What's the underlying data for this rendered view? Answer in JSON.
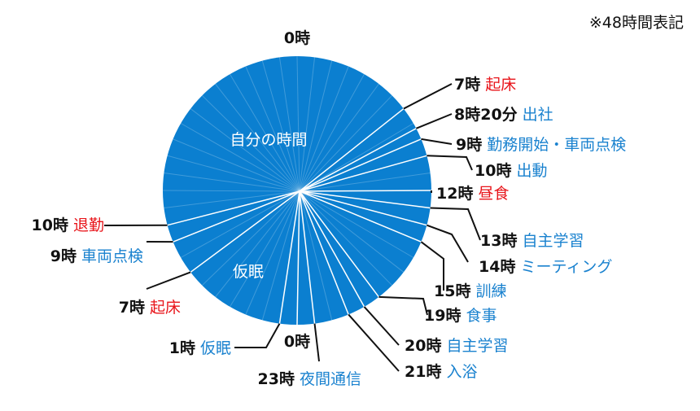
{
  "note": "※48時間表記",
  "top_label": "0時",
  "inner_labels": {
    "own_time": "自分の時間",
    "nap": "仮眠"
  },
  "colors": {
    "disc": "#0b7fd0",
    "blue_text": "#1a82cf",
    "red_text": "#e8141a",
    "line": "#111111"
  },
  "events": [
    {
      "hour": 7,
      "time": "7時",
      "event": "起床",
      "color": "red"
    },
    {
      "hour": 8.333,
      "time": "8時20分",
      "event": "出社",
      "color": "blue"
    },
    {
      "hour": 9,
      "time": "9時",
      "event": "勤務開始・車両点検",
      "color": "blue"
    },
    {
      "hour": 10,
      "time": "10時",
      "event": "出動",
      "color": "blue"
    },
    {
      "hour": 12,
      "time": "12時",
      "event": "昼食",
      "color": "red"
    },
    {
      "hour": 13,
      "time": "13時",
      "event": "自主学習",
      "color": "blue"
    },
    {
      "hour": 14,
      "time": "14時",
      "event": "ミーティング",
      "color": "blue"
    },
    {
      "hour": 15,
      "time": "15時",
      "event": "訓練",
      "color": "blue"
    },
    {
      "hour": 19,
      "time": "19時",
      "event": "食事",
      "color": "blue"
    },
    {
      "hour": 20,
      "time": "20時",
      "event": "自主学習",
      "color": "blue"
    },
    {
      "hour": 21,
      "time": "21時",
      "event": "入浴",
      "color": "blue"
    },
    {
      "hour": 23,
      "time": "23時",
      "event": "夜間通信",
      "color": "blue"
    },
    {
      "hour": 24,
      "time": "0時",
      "event": "",
      "color": "blue"
    },
    {
      "hour": 25,
      "time": "1時",
      "event": "仮眠",
      "color": "blue"
    },
    {
      "hour": 31,
      "time": "7時",
      "event": "起床",
      "color": "red"
    },
    {
      "hour": 33,
      "time": "9時",
      "event": "車両点検",
      "color": "blue"
    },
    {
      "hour": 34,
      "time": "10時",
      "event": "退勤",
      "color": "red"
    }
  ]
}
